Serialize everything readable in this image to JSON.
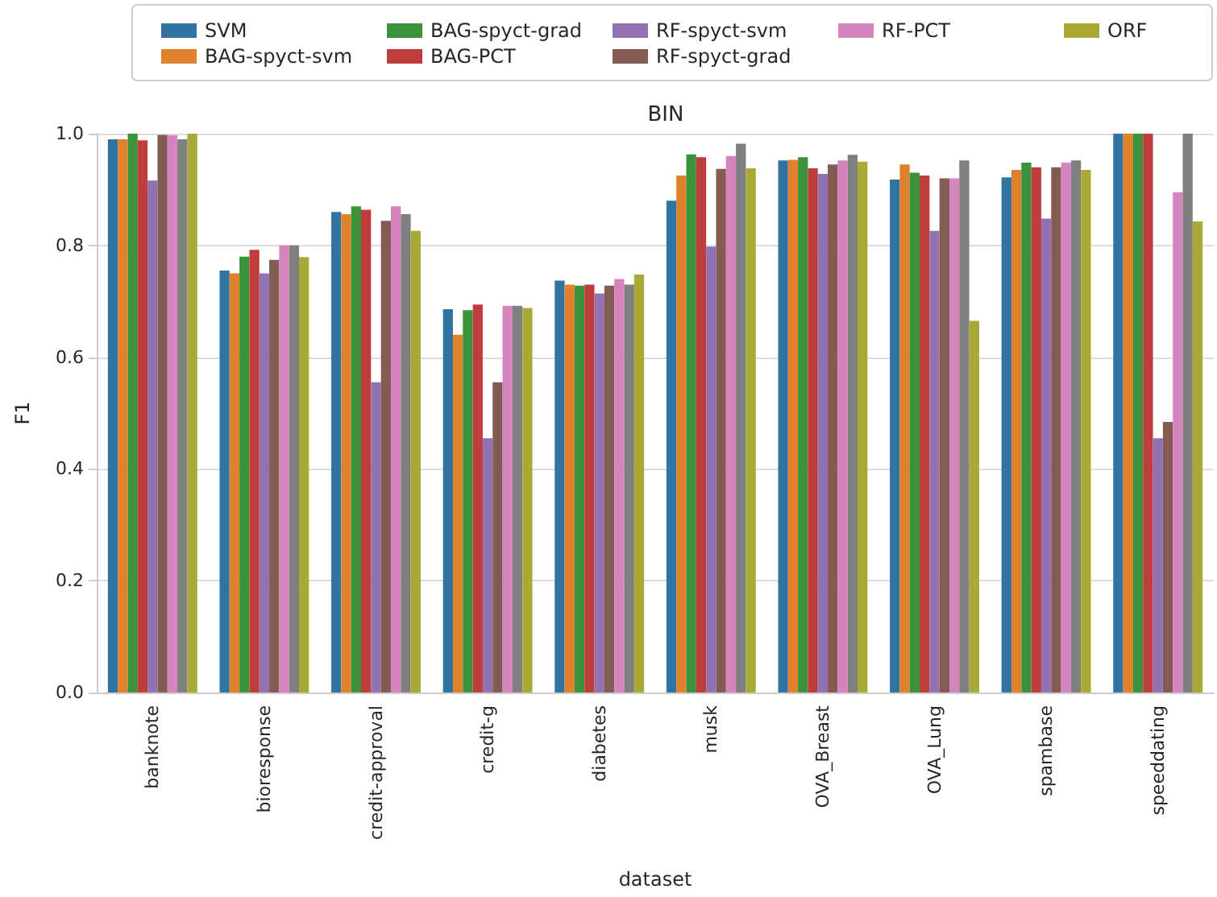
{
  "chart_data": {
    "type": "bar",
    "title": "BIN",
    "xlabel": "dataset",
    "ylabel": "F1",
    "categories": [
      "banknote",
      "bioresponse",
      "credit-approval",
      "credit-g",
      "diabetes",
      "musk",
      "OVA_Breast",
      "OVA_Lung",
      "spambase",
      "speeddating"
    ],
    "series": [
      {
        "name": "SVM",
        "color": "#3274a1",
        "values": [
          0.99,
          0.755,
          0.86,
          0.686,
          0.737,
          0.88,
          0.952,
          0.918,
          0.922,
          1.0
        ]
      },
      {
        "name": "BAG-spyct-svm",
        "color": "#e1812c",
        "values": [
          0.99,
          0.75,
          0.856,
          0.64,
          0.73,
          0.925,
          0.953,
          0.945,
          0.935,
          1.0
        ]
      },
      {
        "name": "BAG-spyct-grad",
        "color": "#3a923a",
        "values": [
          1.0,
          0.78,
          0.87,
          0.684,
          0.728,
          0.963,
          0.958,
          0.93,
          0.948,
          1.0
        ]
      },
      {
        "name": "BAG-PCT",
        "color": "#c03d3e",
        "values": [
          0.988,
          0.792,
          0.864,
          0.694,
          0.73,
          0.958,
          0.938,
          0.925,
          0.94,
          1.0
        ]
      },
      {
        "name": "RF-spyct-svm",
        "color": "#9372b2",
        "values": [
          0.916,
          0.75,
          0.555,
          0.455,
          0.714,
          0.798,
          0.928,
          0.826,
          0.848,
          0.455
        ]
      },
      {
        "name": "RF-spyct-grad",
        "color": "#845b53",
        "values": [
          0.998,
          0.774,
          0.844,
          0.555,
          0.728,
          0.937,
          0.945,
          0.92,
          0.94,
          0.484
        ]
      },
      {
        "name": "RF-PCT",
        "color": "#d684bd",
        "values": [
          0.997,
          0.8,
          0.87,
          0.692,
          0.74,
          0.96,
          0.952,
          0.92,
          0.948,
          0.895
        ]
      },
      {
        "color": "#7f7f7f",
        "values": [
          0.99,
          0.8,
          0.856,
          0.692,
          0.73,
          0.982,
          0.962,
          0.952,
          0.952,
          1.0
        ]
      },
      {
        "name": "ORF",
        "color": "#a9aa35",
        "values": [
          1.0,
          0.779,
          0.826,
          0.688,
          0.748,
          0.938,
          0.95,
          0.665,
          0.935,
          0.843
        ]
      }
    ],
    "ylim": [
      0,
      1
    ],
    "yticks": [
      {
        "value": 0,
        "label": "0.0"
      },
      0.2,
      0.4,
      0.6,
      0.8,
      {
        "value": 1,
        "label": "1.0"
      }
    ],
    "grid": "y",
    "legend": "top"
  }
}
